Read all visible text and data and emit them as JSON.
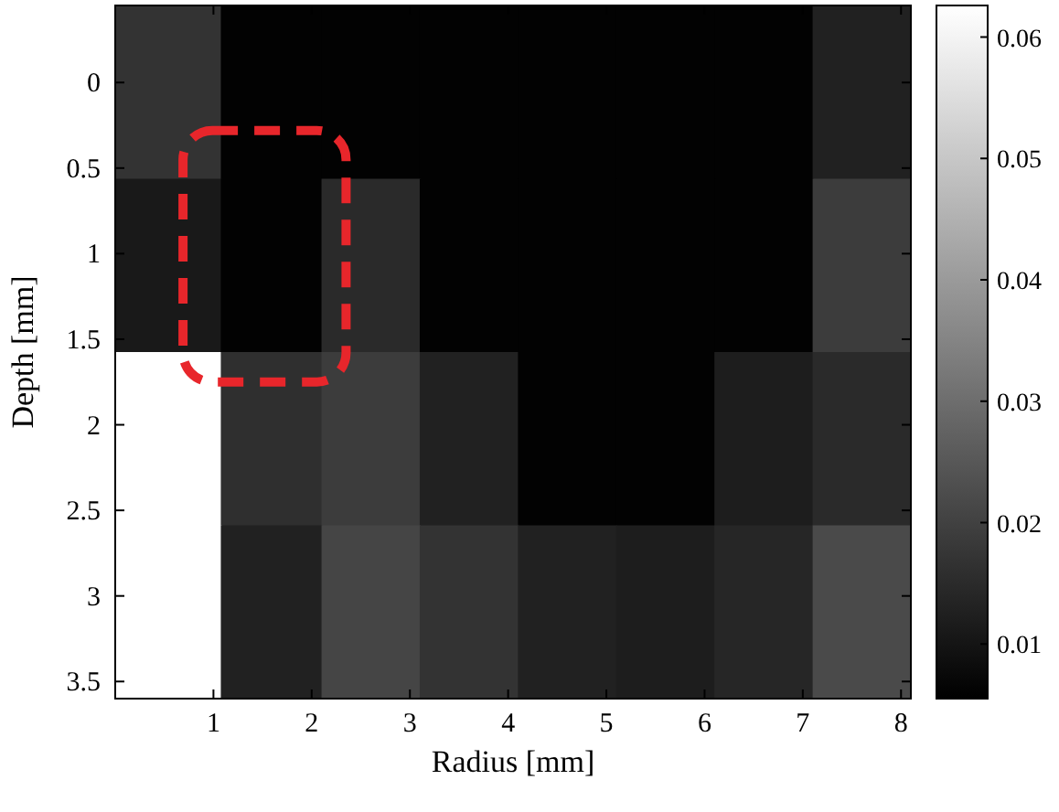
{
  "chart_data": {
    "type": "heatmap",
    "xlabel": "Radius [mm]",
    "ylabel": "Depth [mm]",
    "x": [
      0.55,
      1.6,
      2.6,
      3.6,
      4.6,
      5.6,
      6.6,
      7.6
    ],
    "xlim": [
      0,
      8.1
    ],
    "xticks": [
      1,
      2,
      3,
      4,
      5,
      6,
      7,
      8
    ],
    "ylim": [
      3.6,
      -0.45
    ],
    "yticks": [
      0,
      0.5,
      1,
      1.5,
      2,
      2.5,
      3,
      3.5
    ],
    "cells": [
      [
        0.017,
        0.006,
        0.006,
        0.006,
        0.006,
        0.006,
        0.006,
        0.013
      ],
      [
        0.011,
        0.006,
        0.015,
        0.006,
        0.006,
        0.006,
        0.006,
        0.019
      ],
      [
        0.0626,
        0.016,
        0.019,
        0.013,
        0.006,
        0.006,
        0.012,
        0.015
      ],
      [
        0.0626,
        0.013,
        0.021,
        0.017,
        0.013,
        0.012,
        0.014,
        0.022
      ]
    ],
    "clim": [
      0.0055,
      0.0626
    ],
    "cticks": [
      0.01,
      0.02,
      0.03,
      0.04,
      0.05,
      0.06
    ]
  }
}
